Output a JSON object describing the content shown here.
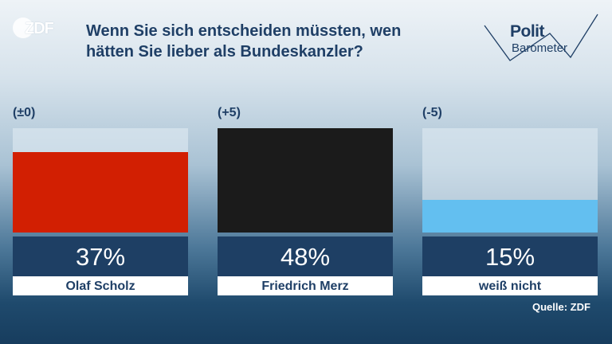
{
  "logo": {
    "text": "ZDF"
  },
  "title": {
    "line1": "Wenn Sie sich entscheiden müssten, wen",
    "line2": "hätten Sie lieber als Bundeskanzler?"
  },
  "brand": {
    "word1": "Polit",
    "word2": "Barometer"
  },
  "source": "Quelle: ZDF",
  "colors": {
    "scholz": "#d21f02",
    "merz": "#1b1b1b",
    "undecided": "#63bff0",
    "navy": "#1e3f64"
  },
  "chart_data": {
    "type": "bar",
    "categories": [
      "Olaf Scholz",
      "Friedrich Merz",
      "weiß nicht"
    ],
    "values": [
      37,
      48,
      15
    ],
    "value_labels": [
      "37%",
      "48%",
      "15%"
    ],
    "changes": [
      "(±0)",
      "(+5)",
      "(-5)"
    ],
    "ylim": [
      0,
      48
    ],
    "title": "Wenn Sie sich entscheiden müssten, wen hätten Sie lieber als Bundeskanzler?",
    "xlabel": "",
    "ylabel": "",
    "grid": false
  }
}
